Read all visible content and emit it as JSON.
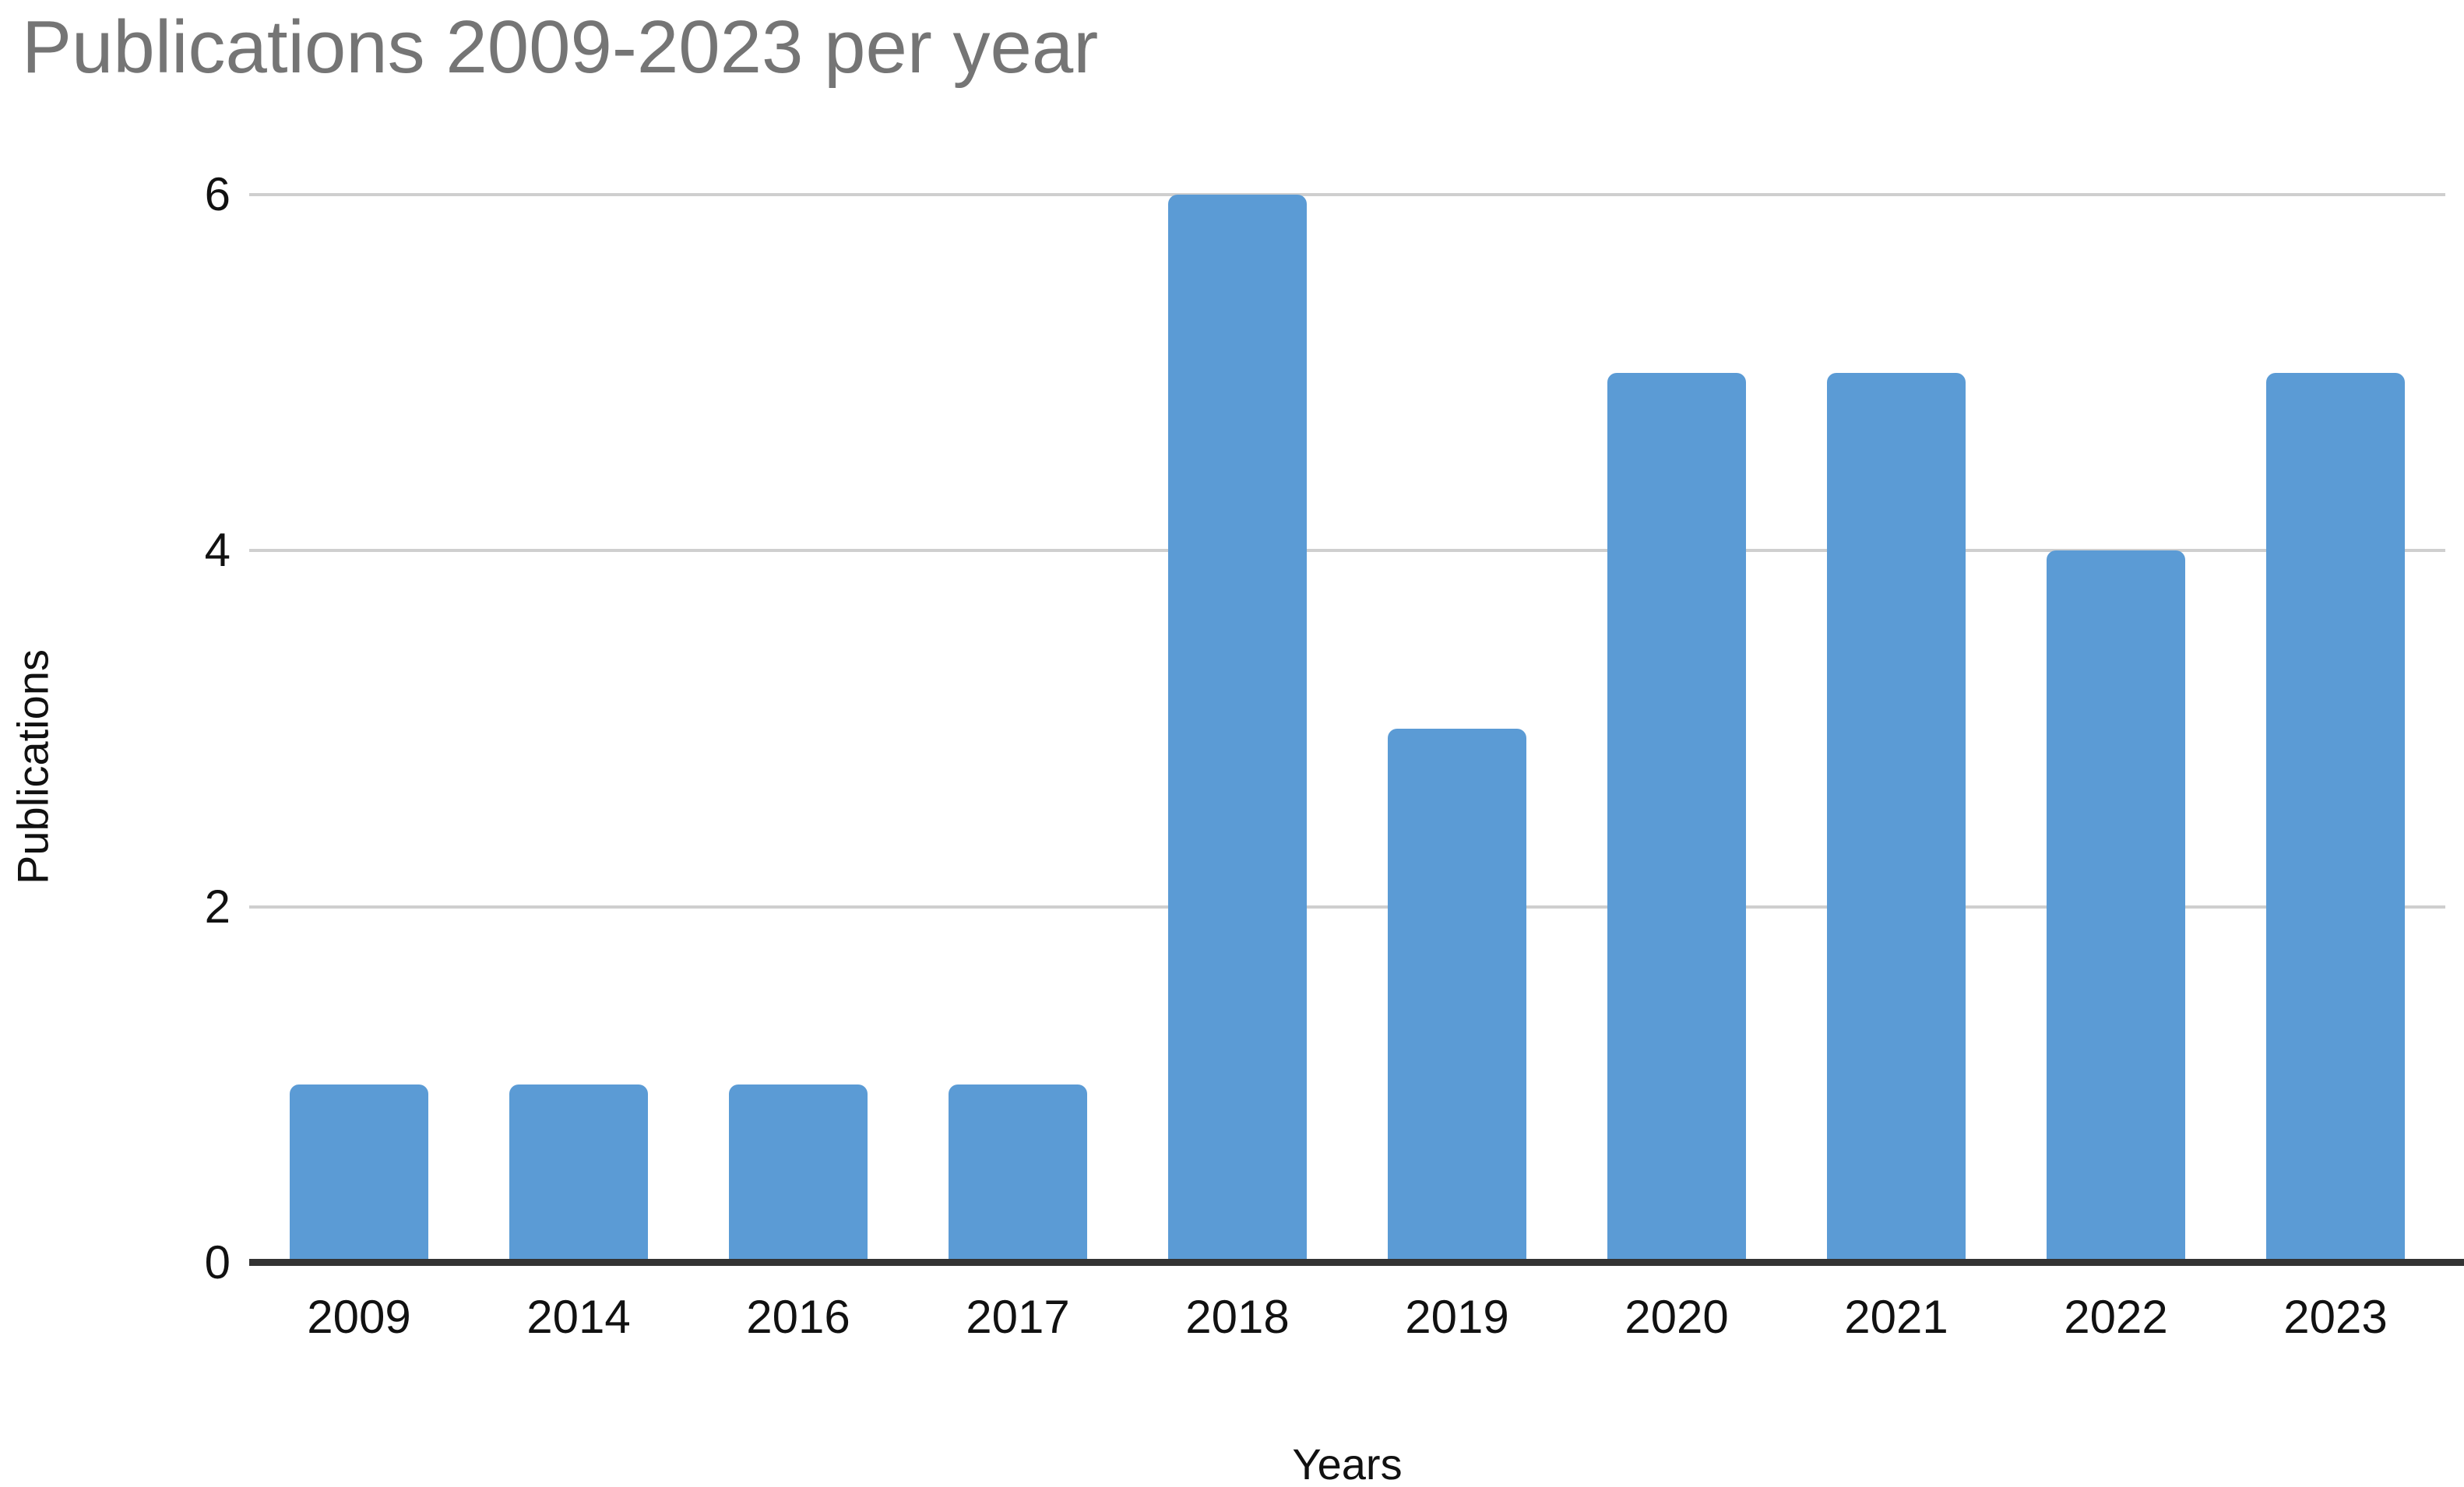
{
  "chart_data": {
    "type": "bar",
    "title": "Publications 2009-2023 per year",
    "xlabel": "Years",
    "ylabel": "Publications",
    "categories": [
      "2009",
      "2014",
      "2016",
      "2017",
      "2018",
      "2019",
      "2020",
      "2021",
      "2022",
      "2023"
    ],
    "values": [
      1,
      1,
      1,
      1,
      6,
      3,
      5,
      5,
      4,
      5
    ],
    "ylim": [
      0,
      6
    ],
    "yticks": [
      0,
      2,
      4,
      6
    ],
    "grid": "horizontal-only",
    "legend": false,
    "colors": {
      "bar": "#5B9BD5",
      "gridline": "#cfcfcf",
      "axis_line": "#333333",
      "title_text": "#757575",
      "tick_text": "#111111",
      "background": "#ffffff"
    }
  }
}
